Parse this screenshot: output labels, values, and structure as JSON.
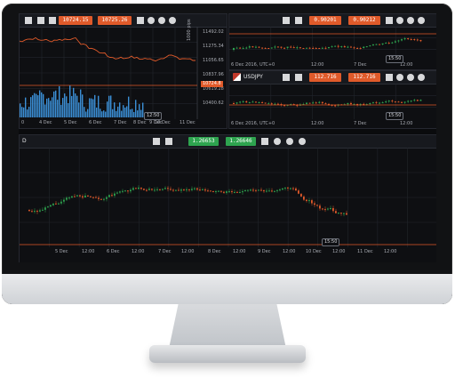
{
  "top_left_chart": {
    "pill_a": "10724.15",
    "pill_b": "10725.26",
    "y_ticks": [
      "11492.02",
      "11275.34",
      "11056.65",
      "10837.96",
      "10619.28",
      "10400.62"
    ],
    "pips_label": "1000 pips",
    "current_price": "10724.8",
    "x_ticks": [
      "0",
      "4 Dec",
      "5 Dec",
      "6 Dec",
      "7 Dec",
      "8 Dec",
      "9 Dec",
      "10 Dec",
      "11 Dec"
    ],
    "bubble": "12:50"
  },
  "top_right_upper_chart": {
    "pill_a": "0.90201",
    "pill_b": "0.90212",
    "x_ticks": [
      "6 Dec 2016, UTC+0",
      "12:00",
      "7 Dec",
      "12:00"
    ],
    "bubble": "15:50"
  },
  "top_right_lower_chart": {
    "symbol": "USDJPY",
    "pill_a": "112.716",
    "pill_b": "112.716",
    "x_ticks": [
      "6 Dec 2016, UTC+0",
      "12:00",
      "7 Dec",
      "12:00"
    ],
    "bubble": "15:50"
  },
  "bottom_chart": {
    "symbol": "D",
    "pill_a": "1.26653",
    "pill_b": "1.26646",
    "x_ticks": [
      "5 Dec",
      "12:00",
      "6 Dec",
      "12:00",
      "7 Dec",
      "12:00",
      "8 Dec",
      "12:00",
      "9 Dec",
      "12:00",
      "10 Dec",
      "12:00",
      "11 Dec",
      "12:00"
    ],
    "bubble": "15:50"
  },
  "colors": {
    "up": "#2ea44f",
    "down": "#e05a2a",
    "line": "#e05a2a",
    "area": "#3b8fd6"
  },
  "icons": [
    "magnifier-icon",
    "crosshair-icon",
    "list-icon",
    "settings-icon",
    "bell-icon",
    "user-icon"
  ]
}
